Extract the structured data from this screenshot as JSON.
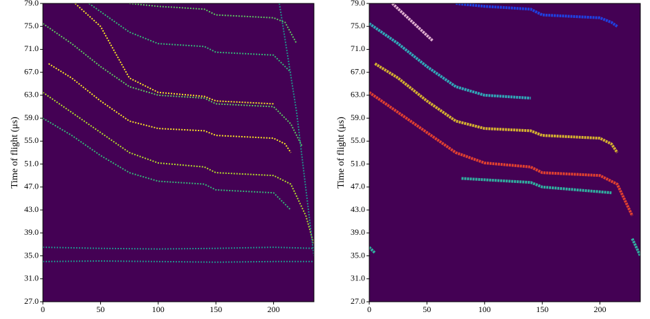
{
  "chart_data": [
    {
      "type": "line",
      "ylabel": "Time of flight (μs)",
      "background": "#440154",
      "xlim": [
        0,
        235
      ],
      "ylim": [
        27,
        79
      ],
      "xticks": [
        0,
        50,
        100,
        150,
        200
      ],
      "yticks": [
        {
          "value": 27,
          "label": "27.0"
        },
        {
          "value": 31,
          "label": "31.0"
        },
        {
          "value": 35,
          "label": "35.0"
        },
        {
          "value": 39,
          "label": "39.0"
        },
        {
          "value": 43,
          "label": "43.0"
        },
        {
          "value": 47,
          "label": "47.0"
        },
        {
          "value": 51,
          "label": "51.0"
        },
        {
          "value": 55,
          "label": "55.0"
        },
        {
          "value": 59,
          "label": "59.0"
        },
        {
          "value": 63,
          "label": "63.0"
        },
        {
          "value": 67,
          "label": "67.0"
        },
        {
          "value": 71,
          "label": "71.0"
        },
        {
          "value": 75,
          "label": "75.0"
        },
        {
          "value": 79,
          "label": "79.0"
        }
      ],
      "series": [
        {
          "color": "#fde725",
          "x": [
            28,
            50,
            75,
            100,
            140,
            150,
            200
          ],
          "values": [
            79,
            75,
            66,
            63.5,
            62.8,
            62,
            61.5
          ]
        },
        {
          "color": "#fde725",
          "x": [
            5,
            25,
            50,
            75,
            100,
            140,
            150,
            200,
            210,
            215
          ],
          "values": [
            68.5,
            66,
            62,
            58.5,
            57.2,
            56.8,
            56,
            55.5,
            54.5,
            53
          ]
        },
        {
          "color": "#b5de2b",
          "x": [
            0,
            25,
            50,
            75,
            100,
            140,
            150,
            200,
            215,
            228,
            235
          ],
          "values": [
            63.5,
            60,
            56.5,
            53,
            51.2,
            50.5,
            49.5,
            49,
            47.5,
            42,
            37
          ]
        },
        {
          "color": "#5ec962",
          "x": [
            0,
            25,
            50,
            75,
            100,
            140,
            150,
            200,
            215,
            225
          ],
          "values": [
            75.5,
            72,
            68,
            64.5,
            63,
            62.5,
            61.5,
            61,
            58,
            54
          ]
        },
        {
          "color": "#5ec962",
          "x": [
            75,
            100,
            140,
            150,
            200,
            210,
            220
          ],
          "values": [
            79,
            78.5,
            78,
            77,
            76.5,
            75.7,
            72
          ]
        },
        {
          "color": "#35b779",
          "x": [
            40,
            75,
            100,
            140,
            150,
            200,
            215
          ],
          "values": [
            79,
            74,
            72,
            71.5,
            70.5,
            70,
            67
          ]
        },
        {
          "color": "#35b779",
          "x": [
            0,
            25,
            50,
            75,
            100,
            140,
            150,
            200,
            215
          ],
          "values": [
            59,
            56,
            52.5,
            49.5,
            48,
            47.5,
            46.5,
            46,
            43
          ]
        },
        {
          "color": "#21918c",
          "x": [
            0,
            50,
            100,
            150,
            200,
            235
          ],
          "values": [
            36.5,
            36.3,
            36.2,
            36.3,
            36.5,
            36.3
          ]
        },
        {
          "color": "#21918c",
          "x": [
            0,
            50,
            100,
            150,
            200,
            235
          ],
          "values": [
            34,
            34.1,
            34,
            33.9,
            34,
            34
          ]
        },
        {
          "color": "#21918c",
          "x": [
            205,
            220,
            235
          ],
          "values": [
            79,
            60,
            35
          ]
        }
      ]
    },
    {
      "type": "line",
      "ylabel": "Time of flight (μs)",
      "background": "#440154",
      "xlim": [
        0,
        235
      ],
      "ylim": [
        27,
        79
      ],
      "xticks": [
        0,
        50,
        100,
        150,
        200
      ],
      "yticks": [
        {
          "value": 27,
          "label": "27.0"
        },
        {
          "value": 31,
          "label": "31.0"
        },
        {
          "value": 35,
          "label": "35.0"
        },
        {
          "value": 39,
          "label": "39.0"
        },
        {
          "value": 43,
          "label": "43.0"
        },
        {
          "value": 47,
          "label": "47.0"
        },
        {
          "value": 51,
          "label": "51.0"
        },
        {
          "value": 55,
          "label": "55.0"
        },
        {
          "value": 59,
          "label": "59.0"
        },
        {
          "value": 63,
          "label": "63.0"
        },
        {
          "value": 67,
          "label": "67.0"
        },
        {
          "value": 71,
          "label": "71.0"
        },
        {
          "value": 75,
          "label": "75.0"
        },
        {
          "value": 79,
          "label": "79.0"
        }
      ],
      "series": [
        {
          "color": "#e04030",
          "x": [
            0,
            25,
            50,
            75,
            100,
            140,
            150,
            200,
            215,
            228
          ],
          "values": [
            63.5,
            60,
            56.5,
            53,
            51.2,
            50.5,
            49.5,
            49,
            47.5,
            42
          ]
        },
        {
          "color": "#d4b030",
          "x": [
            5,
            25,
            50,
            75,
            100,
            140,
            150,
            200,
            210,
            215
          ],
          "values": [
            68.5,
            66,
            62,
            58.5,
            57.2,
            56.8,
            56,
            55.5,
            54.5,
            53
          ]
        },
        {
          "color": "#30a8b8",
          "x": [
            0,
            25,
            50,
            75,
            100,
            140
          ],
          "values": [
            75.5,
            72,
            68,
            64.5,
            63,
            62.5
          ]
        },
        {
          "color": "#2040e0",
          "x": [
            75,
            100,
            140,
            150,
            200,
            210,
            215
          ],
          "values": [
            79,
            78.5,
            78,
            77,
            76.5,
            75.7,
            75
          ]
        },
        {
          "color": "#e0b0d0",
          "x": [
            20,
            55
          ],
          "values": [
            79,
            72.5
          ]
        },
        {
          "color": "#30b0a0",
          "x": [
            80,
            140,
            150,
            210
          ],
          "values": [
            48.5,
            47.8,
            47,
            46
          ]
        },
        {
          "color": "#30b0a0",
          "x": [
            0,
            5
          ],
          "values": [
            36.5,
            35.5
          ]
        },
        {
          "color": "#30b0a0",
          "x": [
            228,
            235
          ],
          "values": [
            38,
            35
          ]
        }
      ]
    }
  ]
}
